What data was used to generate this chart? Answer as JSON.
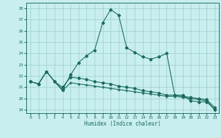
{
  "xlabel": "Humidex (Indice chaleur)",
  "bg_color": "#c8eef0",
  "grid_color": "#99cccc",
  "line_color": "#1a6b5a",
  "xlim": [
    -0.5,
    23.5
  ],
  "ylim": [
    18.7,
    28.5
  ],
  "yticks": [
    19,
    20,
    21,
    22,
    23,
    24,
    25,
    26,
    27,
    28
  ],
  "xticks": [
    0,
    1,
    2,
    3,
    4,
    5,
    6,
    7,
    8,
    9,
    10,
    11,
    12,
    13,
    14,
    15,
    16,
    17,
    18,
    19,
    20,
    21,
    22,
    23
  ],
  "line1_x": [
    0,
    1,
    2,
    3,
    4,
    5,
    6,
    7,
    8,
    9,
    10,
    11,
    12,
    13,
    14,
    15,
    16,
    17,
    18,
    19,
    20,
    21,
    22,
    23
  ],
  "line1_y": [
    21.5,
    21.3,
    22.4,
    21.5,
    20.8,
    22.1,
    23.2,
    23.8,
    24.3,
    26.7,
    27.9,
    27.4,
    24.5,
    24.1,
    23.7,
    23.5,
    23.7,
    24.0,
    20.3,
    20.3,
    19.8,
    19.7,
    19.7,
    19.0
  ],
  "line2_x": [
    0,
    1,
    2,
    3,
    4,
    5,
    6,
    7,
    8,
    9,
    10,
    11,
    12,
    13,
    14,
    15,
    16,
    17,
    18,
    19,
    20,
    21,
    22,
    23
  ],
  "line2_y": [
    21.5,
    21.3,
    22.4,
    21.5,
    21.0,
    21.9,
    21.8,
    21.7,
    21.5,
    21.4,
    21.3,
    21.1,
    21.0,
    20.9,
    20.7,
    20.6,
    20.5,
    20.3,
    20.3,
    20.2,
    20.1,
    20.0,
    19.9,
    19.2
  ],
  "line3_x": [
    0,
    1,
    2,
    3,
    4,
    5,
    6,
    7,
    8,
    9,
    10,
    11,
    12,
    13,
    14,
    15,
    16,
    17,
    18,
    19,
    20,
    21,
    22,
    23
  ],
  "line3_y": [
    21.5,
    21.3,
    22.4,
    21.5,
    20.7,
    21.4,
    21.3,
    21.2,
    21.1,
    21.0,
    20.9,
    20.8,
    20.7,
    20.6,
    20.5,
    20.4,
    20.3,
    20.2,
    20.2,
    20.1,
    20.0,
    19.9,
    19.8,
    19.0
  ]
}
